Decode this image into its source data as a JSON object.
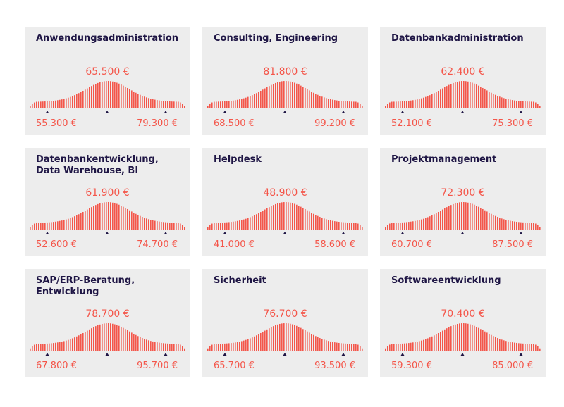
{
  "colors": {
    "bar": "#f4564a",
    "marker": "#1f1645",
    "card": "#ededed",
    "title": "#1f1645"
  },
  "chart_data": [
    {
      "type": "bar",
      "title": "Anwendungsadministration",
      "median": "65.500 €",
      "low": "55.300 €",
      "high": "79.300 €"
    },
    {
      "type": "bar",
      "title": "Consulting, Engineering",
      "median": "81.800 €",
      "low": "68.500 €",
      "high": "99.200 €"
    },
    {
      "type": "bar",
      "title": "Datenbankadministration",
      "median": "62.400 €",
      "low": "52.100 €",
      "high": "75.300 €"
    },
    {
      "type": "bar",
      "title": "Datenbankentwicklung, Data Warehouse, BI",
      "median": "61.900 €",
      "low": "52.600 €",
      "high": "74.700 €"
    },
    {
      "type": "bar",
      "title": "Helpdesk",
      "median": "48.900 €",
      "low": "41.000 €",
      "high": "58.600 €"
    },
    {
      "type": "bar",
      "title": "Projektmanagement",
      "median": "72.300 €",
      "low": "60.700 €",
      "high": "87.500 €"
    },
    {
      "type": "bar",
      "title": "SAP/ERP-Beratung, Entwicklung",
      "median": "78.700 €",
      "low": "67.800 €",
      "high": "95.700 €"
    },
    {
      "type": "bar",
      "title": "Sicherheit",
      "median": "76.700 €",
      "low": "65.700 €",
      "high": "93.500 €"
    },
    {
      "type": "bar",
      "title": "Softwareentwicklung",
      "median": "70.400 €",
      "low": "59.300 €",
      "high": "85.000 €"
    }
  ]
}
